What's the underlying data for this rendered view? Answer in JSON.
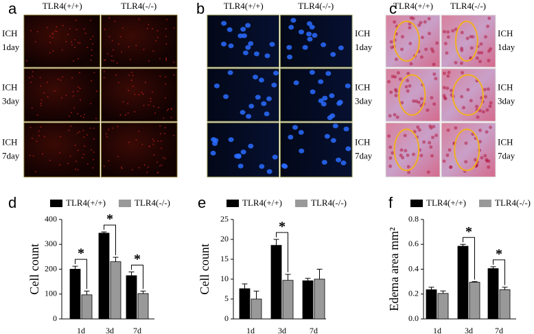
{
  "image_panels": [
    {
      "letter": "a",
      "columns": [
        "TLR4(+/+)",
        "TLR4(-/-)"
      ],
      "rows": [
        [
          "ICH",
          "1day"
        ],
        [
          "ICH",
          "3day"
        ],
        [
          "ICH",
          "7day"
        ]
      ]
    },
    {
      "letter": "b",
      "columns": [
        "TLR4(+/+)",
        "TLR4(-/-)"
      ],
      "rows": [
        [
          "ICH",
          "1day"
        ],
        [
          "ICH",
          "3day"
        ],
        [
          "ICH",
          "7day"
        ]
      ]
    },
    {
      "letter": "c",
      "columns": [
        "TLR4(+/+)",
        "TLR4(-/-)"
      ],
      "rows": [
        [
          "ICH",
          "1day"
        ],
        [
          "ICH",
          "3day"
        ],
        [
          "ICH",
          "7day"
        ]
      ]
    }
  ],
  "chart_data": [
    {
      "type": "bar",
      "letter": "d",
      "y_label": "Cell count",
      "categories": [
        "1d",
        "3d",
        "7d"
      ],
      "series": [
        {
          "name": "TLR4(+/+)",
          "color": "#000000",
          "values": [
            200,
            345,
            174
          ],
          "errors": [
            12,
            5,
            15
          ]
        },
        {
          "name": "TLR4(-/-)",
          "color": "#999999",
          "values": [
            97,
            230,
            102
          ],
          "errors": [
            15,
            18,
            10
          ]
        }
      ],
      "ylim": [
        0,
        400
      ],
      "yticks": [
        0,
        100,
        200,
        300,
        400
      ],
      "significant": [
        true,
        true,
        true
      ],
      "significance_label": "*"
    },
    {
      "type": "bar",
      "letter": "e",
      "y_label": "Cell count",
      "categories": [
        "1d",
        "3d",
        "7d"
      ],
      "series": [
        {
          "name": "TLR4(+/+)",
          "color": "#000000",
          "values": [
            7.6,
            18.5,
            9.6
          ],
          "errors": [
            1.2,
            1.5,
            0.6
          ]
        },
        {
          "name": "TLR4(-/-)",
          "color": "#999999",
          "values": [
            5.0,
            9.7,
            10.0
          ],
          "errors": [
            2,
            1.5,
            2.5
          ]
        }
      ],
      "ylim": [
        0,
        25
      ],
      "yticks": [
        0,
        5,
        10,
        15,
        20,
        25
      ],
      "significant": [
        false,
        true,
        false
      ],
      "significance_label": "*"
    },
    {
      "type": "bar",
      "letter": "f",
      "y_label": "Edema area mm²",
      "categories": [
        "1d",
        "3d",
        "7d"
      ],
      "series": [
        {
          "name": "TLR4(+/+)",
          "color": "#000000",
          "values": [
            0.235,
            0.585,
            0.405
          ],
          "errors": [
            0.02,
            0.015,
            0.015
          ]
        },
        {
          "name": "TLR4(-/-)",
          "color": "#999999",
          "values": [
            0.205,
            0.295,
            0.235
          ],
          "errors": [
            0.02,
            0.005,
            0.02
          ]
        }
      ],
      "ylim": [
        0,
        0.8
      ],
      "yticks": [
        {
          "value": 0,
          "label": "0.0"
        },
        {
          "value": 0.2,
          "label": "0.2"
        },
        {
          "value": 0.4,
          "label": "0.4"
        },
        {
          "value": 0.6,
          "label": "0.6"
        },
        {
          "value": 0.8,
          "label": "0.8"
        }
      ],
      "significant": [
        false,
        true,
        true
      ],
      "significance_label": "*"
    }
  ]
}
